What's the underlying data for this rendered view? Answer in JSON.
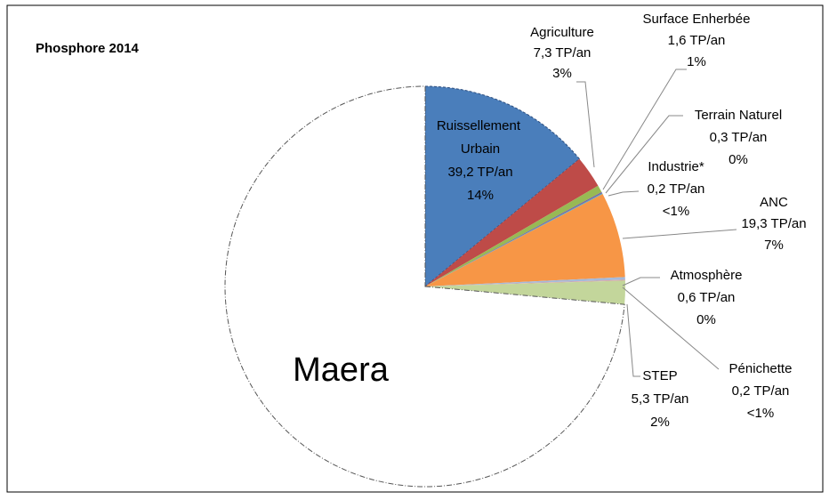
{
  "chart_data": {
    "type": "pie",
    "title": "Phosphore 2014",
    "categories": [
      "Ruissellement Urbain",
      "Agriculture",
      "Surface Enherbée",
      "Terrain Naturel",
      "Industrie*",
      "ANC",
      "Atmosphère",
      "Pénichette",
      "STEP",
      "Maera"
    ],
    "values": [
      39.2,
      7.3,
      1.6,
      0.3,
      0.2,
      19.3,
      0.6,
      0.2,
      5.3,
      206
    ],
    "value_labels": [
      "39,2 TP/an",
      "7,3 TP/an",
      "1,6 TP/an",
      "0,3 TP/an",
      "0,2 TP/an",
      "19,3 TP/an",
      "0,6 TP/an",
      "0,2 TP/an",
      "5,3 TP/an",
      null
    ],
    "percent_labels": [
      "14%",
      "3%",
      "1%",
      "0%",
      "<1%",
      "7%",
      "0%",
      "<1%",
      "2%",
      null
    ],
    "colors": [
      "#4a7ebb",
      "#be4b48",
      "#98b954",
      "#7d60a0",
      "#46aac5",
      "#f79646",
      "#a5b9d9",
      "#d9a3a1",
      "#c3d69b",
      "none"
    ],
    "removed_slice": "Maera"
  }
}
